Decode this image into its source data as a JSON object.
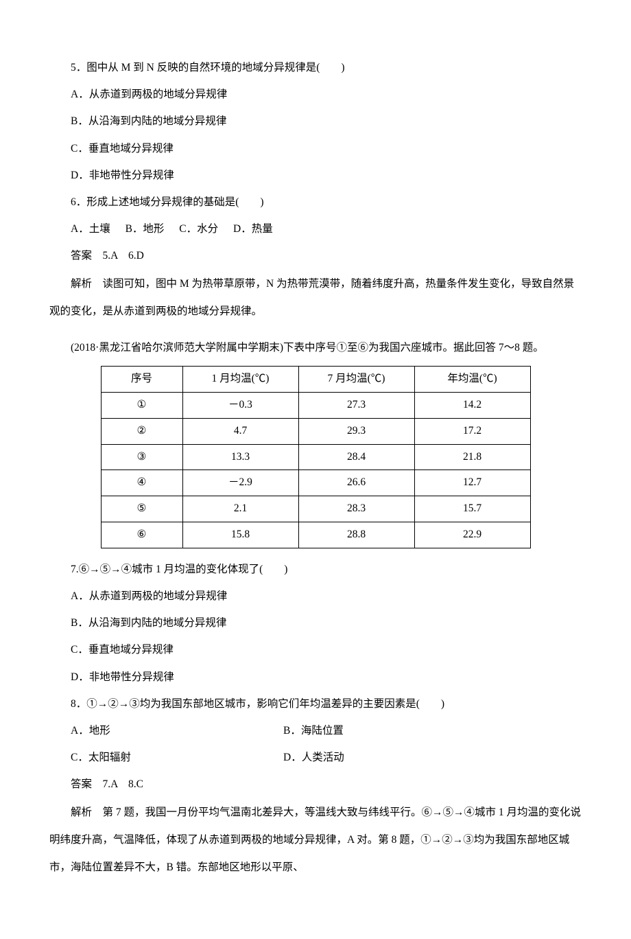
{
  "q5": {
    "text": "5．图中从 M 到 N 反映的自然环境的地域分异规律是(　　)",
    "a": "A．从赤道到两极的地域分异规律",
    "b": "B．从沿海到内陆的地域分异规律",
    "c": "C．垂直地域分异规律",
    "d": "D．非地带性分异规律"
  },
  "q6": {
    "text": "6．形成上述地域分异规律的基础是(　　)",
    "a": "A．土壤",
    "b": "B．地形",
    "c": "C．水分",
    "d": "D．热量"
  },
  "ans56": "答案　5.A　6.D",
  "exp56": "解析　读图可知，图中 M 为热带草原带，N 为热带荒漠带，随着纬度升高，热量条件发生变化，导致自然景观的变化，是从赤道到两极的地域分异规律。",
  "passage": "(2018·黑龙江省哈尔滨师范大学附属中学期末)下表中序号①至⑥为我国六座城市。据此回答 7～8 题。",
  "table": {
    "headers": [
      "序号",
      "1 月均温(℃)",
      "7 月均温(℃)",
      "年均温(℃)"
    ],
    "rows": [
      [
        "①",
        "－0.3",
        "27.3",
        "14.2"
      ],
      [
        "②",
        "4.7",
        "29.3",
        "17.2"
      ],
      [
        "③",
        "13.3",
        "28.4",
        "21.8"
      ],
      [
        "④",
        "－2.9",
        "26.6",
        "12.7"
      ],
      [
        "⑤",
        "2.1",
        "28.3",
        "15.7"
      ],
      [
        "⑥",
        "15.8",
        "28.8",
        "22.9"
      ]
    ]
  },
  "q7": {
    "text": "7.⑥→⑤→④城市 1 月均温的变化体现了(　　)",
    "a": "A．从赤道到两极的地域分异规律",
    "b": "B．从沿海到内陆的地域分异规律",
    "c": "C．垂直地域分异规律",
    "d": "D．非地带性分异规律"
  },
  "q8": {
    "text": "8．①→②→③均为我国东部地区城市，影响它们年均温差异的主要因素是(　　)",
    "a": "A．地形",
    "b": "B．海陆位置",
    "c": "C．太阳辐射",
    "d": "D．人类活动"
  },
  "ans78": "答案　7.A　8.C",
  "exp78": "解析　第 7 题，我国一月份平均气温南北差异大，等温线大致与纬线平行。⑥→⑤→④城市 1 月均温的变化说明纬度升高，气温降低，体现了从赤道到两极的地域分异规律，A 对。第 8 题，①→②→③均为我国东部地区城市，海陆位置差异不大，B 错。东部地区地形以平原、"
}
